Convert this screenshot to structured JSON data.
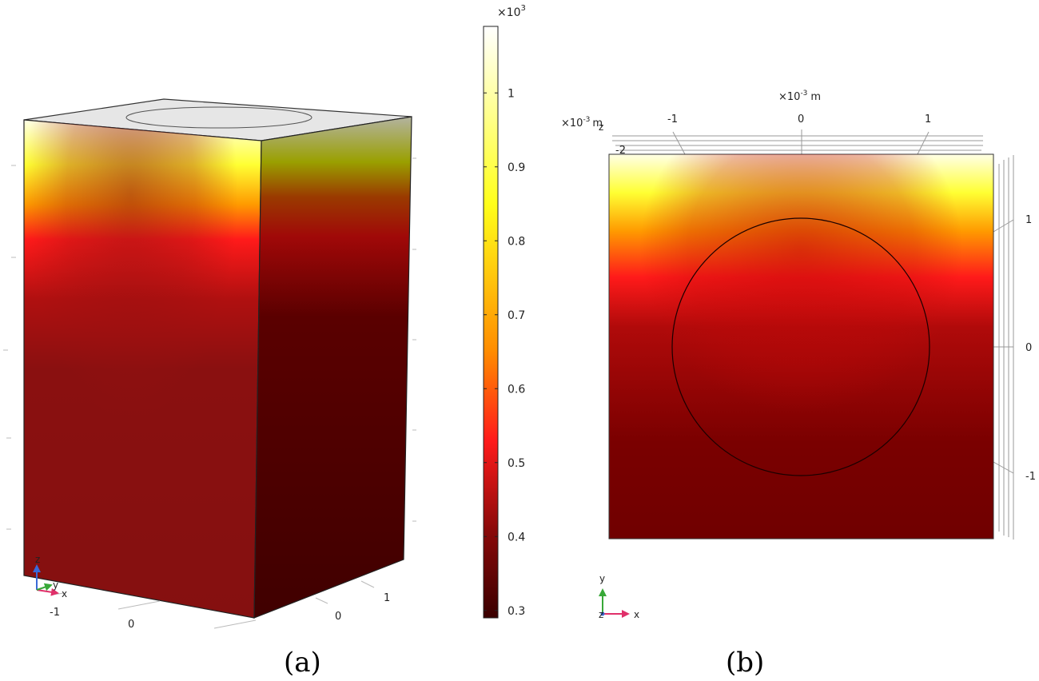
{
  "colorbar": {
    "multiplier_base": "×10",
    "multiplier_exp": "3",
    "ticks": [
      {
        "value": 1.0,
        "label": "1"
      },
      {
        "value": 0.9,
        "label": "0.9"
      },
      {
        "value": 0.8,
        "label": "0.8"
      },
      {
        "value": 0.7,
        "label": "0.7"
      },
      {
        "value": 0.6,
        "label": "0.6"
      },
      {
        "value": 0.5,
        "label": "0.5"
      },
      {
        "value": 0.4,
        "label": "0.4"
      },
      {
        "value": 0.3,
        "label": "0.3"
      }
    ],
    "range": [
      0.29,
      1.09
    ],
    "colors": [
      "#3a0000",
      "#8b0a0a",
      "#ff1a1a",
      "#ff8c00",
      "#ffff1a",
      "#ffffff"
    ]
  },
  "panel_a": {
    "caption": "(a)",
    "axis_triad": {
      "z": "z",
      "y": "y",
      "x": "x"
    },
    "axis_ticks": [
      {
        "id": "xm1",
        "label": "-1"
      },
      {
        "id": "x0",
        "label": "0"
      },
      {
        "id": "y0",
        "label": "0"
      },
      {
        "id": "y1",
        "label": "1"
      }
    ]
  },
  "panel_b": {
    "caption": "(b)",
    "top_axis_unit_base": "×10",
    "top_axis_unit_exp": "-3",
    "top_axis_unit_suffix": "m",
    "left_unit_base": "×10",
    "left_unit_exp": "-3",
    "left_unit_suffix": "m",
    "left_unit_extra": "z",
    "top_ticks": [
      {
        "id": "tm1",
        "label": "-1"
      },
      {
        "id": "t0",
        "label": "0"
      },
      {
        "id": "t1",
        "label": "1"
      }
    ],
    "extra_tick_label": "-2",
    "right_ticks": [
      {
        "id": "r1",
        "label": "1"
      },
      {
        "id": "r0",
        "label": "0"
      },
      {
        "id": "rm1",
        "label": "-1"
      }
    ],
    "axis_triad": {
      "y": "y",
      "z": "z",
      "x": "x"
    }
  }
}
